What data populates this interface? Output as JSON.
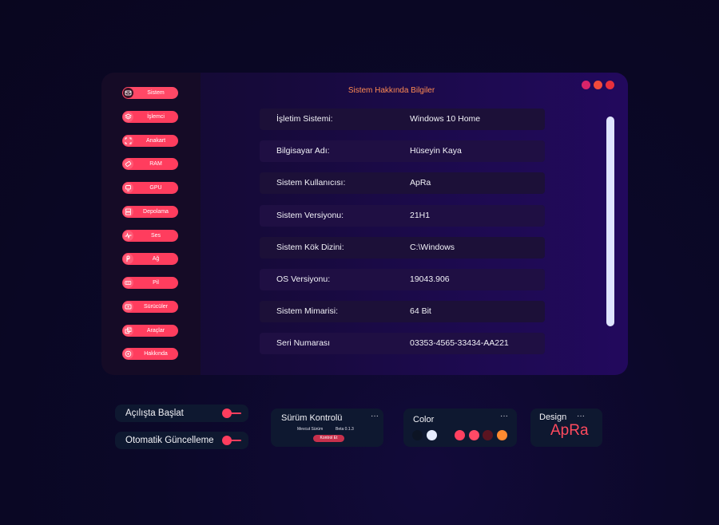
{
  "window": {
    "title": "Sistem Hakkında Bilgiler",
    "controls": [
      {
        "name": "minimize",
        "color": "#d8246a"
      },
      {
        "name": "maximize",
        "color": "#f24a3b"
      },
      {
        "name": "close",
        "color": "#e8303c"
      }
    ]
  },
  "sidebar": {
    "items": [
      {
        "label": "Sistem",
        "icon": "system-icon",
        "active": true
      },
      {
        "label": "İşlemci",
        "icon": "processor-icon"
      },
      {
        "label": "Anakart",
        "icon": "motherboard-icon"
      },
      {
        "label": "RAM",
        "icon": "ram-icon"
      },
      {
        "label": "GPU",
        "icon": "gpu-icon"
      },
      {
        "label": "Depolama",
        "icon": "storage-icon"
      },
      {
        "label": "Ses",
        "icon": "sound-icon"
      },
      {
        "label": "Ağ",
        "icon": "network-icon"
      },
      {
        "label": "Pil",
        "icon": "battery-icon"
      },
      {
        "label": "Sürücüler",
        "icon": "drivers-icon"
      },
      {
        "label": "Araçlar",
        "icon": "tools-icon"
      },
      {
        "label": "Hakkında",
        "icon": "about-icon"
      }
    ]
  },
  "info": {
    "rows": [
      {
        "label": "İşletim Sistemi:",
        "value": "Windows 10 Home"
      },
      {
        "label": "Bilgisayar Adı:",
        "value": "Hüseyin Kaya"
      },
      {
        "label": "Sistem Kullanıcısı:",
        "value": "ApRa"
      },
      {
        "label": "Sistem Versiyonu:",
        "value": "21H1"
      },
      {
        "label": "Sistem Kök Dizini:",
        "value": "C:\\Windows"
      },
      {
        "label": "OS Versiyonu:",
        "value": "19043.906"
      },
      {
        "label": "Sistem Mimarisi:",
        "value": "64 Bit"
      },
      {
        "label": "Seri Numarası",
        "value": "03353-4565-33434-AA221"
      }
    ]
  },
  "toggles": [
    {
      "label": "Açılışta Başlat"
    },
    {
      "label": "Otomatik Güncelleme"
    }
  ],
  "version_card": {
    "title": "Sürüm Kontrolü",
    "current_label": "Mevcut Sürüm",
    "current_value": "Beta 0.1.3",
    "button_label": "Kontrol Et"
  },
  "color_card": {
    "title": "Color",
    "swatches": [
      "#0c1424",
      "#e6ecff",
      "#ff4060",
      "#ff4a66",
      "#5a1420",
      "#ff8a30"
    ]
  },
  "design_card": {
    "title": "Design",
    "brand": "ApRa"
  },
  "menu_dots": "···",
  "colors": {
    "accent": "#ff3d5e",
    "title": "#ff8a52"
  }
}
